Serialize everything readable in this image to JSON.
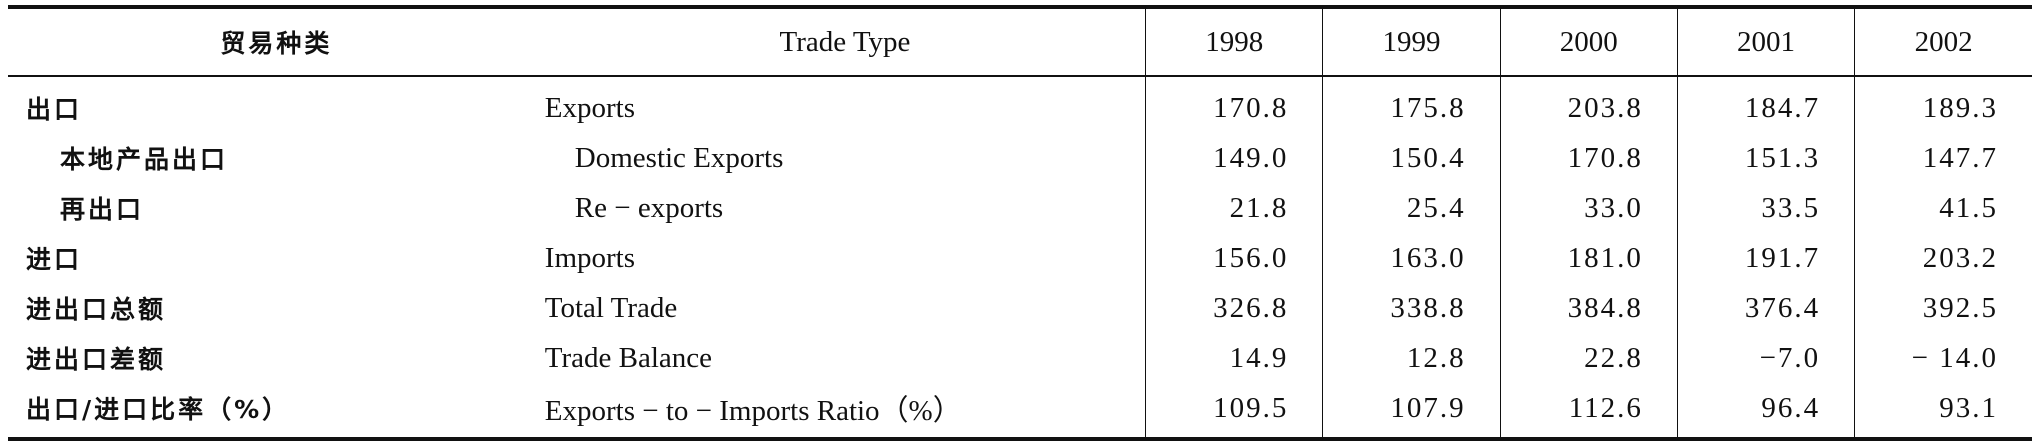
{
  "table": {
    "header": [
      "贸易种类",
      "Trade Type",
      "1998",
      "1999",
      "2000",
      "2001",
      "2002"
    ],
    "rows": [
      [
        "出口",
        "Exports",
        "170.8",
        "175.8",
        "203.8",
        "184.7",
        "189.3"
      ],
      [
        "本地产品出口",
        "Domestic Exports",
        "149.0",
        "150.4",
        "170.8",
        "151.3",
        "147.7"
      ],
      [
        "再出口",
        "Re − exports",
        "21.8",
        "25.4",
        "33.0",
        "33.5",
        "41.5"
      ],
      [
        "进口",
        "Imports",
        "156.0",
        "163.0",
        "181.0",
        "191.7",
        "203.2"
      ],
      [
        "进出口总额",
        "Total Trade",
        "326.8",
        "338.8",
        "384.8",
        "376.4",
        "392.5"
      ],
      [
        "进出口差额",
        "Trade Balance",
        "14.9",
        "12.8",
        "22.8",
        "−7.0",
        "− 14.0"
      ],
      [
        "出口/进口比率（%）",
        "Exports − to − Imports Ratio（%）",
        "109.5",
        "107.9",
        "112.6",
        "96.4",
        "93.1"
      ]
    ]
  }
}
